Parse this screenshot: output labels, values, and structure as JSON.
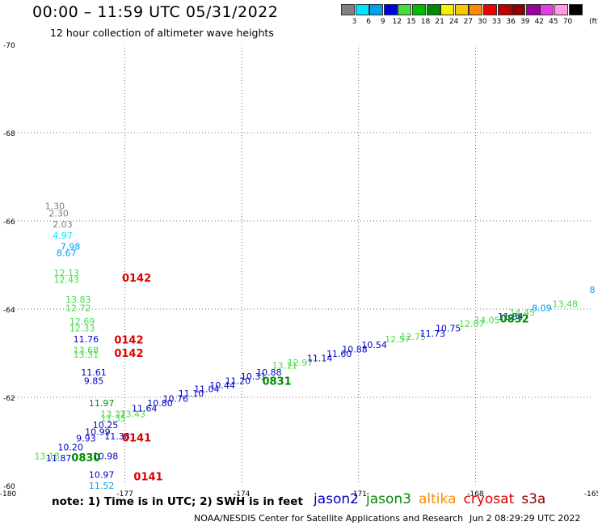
{
  "header": {
    "title": "00:00 – 11:59 UTC 05/31/2022",
    "subtitle": "12 hour collection of altimeter wave heights"
  },
  "colorbar": {
    "bins": [
      {
        "color": "#808080",
        "label": "3"
      },
      {
        "color": "#00e5ff",
        "label": "6"
      },
      {
        "color": "#00a0f0",
        "label": "9"
      },
      {
        "color": "#0000e0",
        "label": "12"
      },
      {
        "color": "#44dd44",
        "label": "15"
      },
      {
        "color": "#00bb00",
        "label": "18"
      },
      {
        "color": "#008c00",
        "label": "21"
      },
      {
        "color": "#f2f200",
        "label": "24"
      },
      {
        "color": "#f5c800",
        "label": "27"
      },
      {
        "color": "#ff8c00",
        "label": "30"
      },
      {
        "color": "#ee0000",
        "label": "33"
      },
      {
        "color": "#c00000",
        "label": "36"
      },
      {
        "color": "#8b0000",
        "label": "39"
      },
      {
        "color": "#9d009d",
        "label": "42"
      },
      {
        "color": "#e040e0",
        "label": "45"
      },
      {
        "color": "#ff99e0",
        "label": "70"
      },
      {
        "color": "#000000",
        "label": ""
      }
    ],
    "unit": "(ft)"
  },
  "footer": {
    "note": "note:  1) Time is in UTC;  2) SWH is in feet",
    "credit": "NOAA/NESDIS Center for Satellite Applications and Research",
    "timestamp": "Jun  2 08:29:29 UTC 2022"
  },
  "legend": [
    {
      "name": "jason2",
      "color": "#0000cc"
    },
    {
      "name": "jason3",
      "color": "#008c00"
    },
    {
      "name": "altika",
      "color": "#ff8c00"
    },
    {
      "name": "cryosat",
      "color": "#dd0000"
    },
    {
      "name": "s3a",
      "color": "#8b0000"
    }
  ],
  "chart_data": {
    "type": "scatter",
    "xlim": [
      -180,
      -165
    ],
    "ylim": [
      -70,
      -60
    ],
    "x_ticks": [
      "-180",
      "-177",
      "-174",
      "-171",
      "-168",
      "-165"
    ],
    "y_ticks": [
      "-60",
      "-62",
      "-64",
      "-66",
      "-68",
      "-70"
    ],
    "grid": true,
    "points": [
      {
        "x": -178.7,
        "y": -60.55,
        "label": "11.87",
        "color": "#0000cc"
      },
      {
        "x": -179.0,
        "y": -60.6,
        "label": "13.18",
        "color": "#44dd44"
      },
      {
        "x": -178.4,
        "y": -60.8,
        "label": "10.20",
        "color": "#0000cc"
      },
      {
        "x": -178.0,
        "y": -61.0,
        "label": "9.93",
        "color": "#0000cc"
      },
      {
        "x": -177.7,
        "y": -61.15,
        "label": "10.99",
        "color": "#0000cc"
      },
      {
        "x": -177.5,
        "y": -61.3,
        "label": "10.25",
        "color": "#0000cc"
      },
      {
        "x": -177.3,
        "y": -61.45,
        "label": "11.35",
        "color": "#44dd44"
      },
      {
        "x": -177.3,
        "y": -61.55,
        "label": "13.37",
        "color": "#44dd44"
      },
      {
        "x": -176.8,
        "y": -61.55,
        "label": "13.43",
        "color": "#44dd44"
      },
      {
        "x": -177.2,
        "y": -61.05,
        "label": "11.38",
        "color": "#0000cc"
      },
      {
        "x": -176.5,
        "y": -61.68,
        "label": "11.64",
        "color": "#0000cc"
      },
      {
        "x": -176.1,
        "y": -61.8,
        "label": "10.80",
        "color": "#0000cc"
      },
      {
        "x": -175.7,
        "y": -61.9,
        "label": "10.76",
        "color": "#0000cc"
      },
      {
        "x": -175.3,
        "y": -62.02,
        "label": "11.10",
        "color": "#0000cc"
      },
      {
        "x": -174.9,
        "y": -62.12,
        "label": "11.04",
        "color": "#0000cc"
      },
      {
        "x": -174.5,
        "y": -62.2,
        "label": "10.44",
        "color": "#0000cc"
      },
      {
        "x": -174.1,
        "y": -62.3,
        "label": "11.20",
        "color": "#0000cc"
      },
      {
        "x": -173.7,
        "y": -62.4,
        "label": "10.31",
        "color": "#0000cc"
      },
      {
        "x": -173.3,
        "y": -62.5,
        "label": "10.88",
        "color": "#0000cc"
      },
      {
        "x": -172.9,
        "y": -62.65,
        "label": "13.11",
        "color": "#44dd44"
      },
      {
        "x": -172.5,
        "y": -62.72,
        "label": "12.97",
        "color": "#44dd44"
      },
      {
        "x": -172.0,
        "y": -62.82,
        "label": "11.14",
        "color": "#0000cc"
      },
      {
        "x": -171.5,
        "y": -62.92,
        "label": "11.60",
        "color": "#0000cc"
      },
      {
        "x": -171.1,
        "y": -63.02,
        "label": "10.88",
        "color": "#0000cc"
      },
      {
        "x": -170.6,
        "y": -63.12,
        "label": "10.54",
        "color": "#0000cc"
      },
      {
        "x": -170.0,
        "y": -63.25,
        "label": "12.57",
        "color": "#44dd44"
      },
      {
        "x": -169.6,
        "y": -63.3,
        "label": "12.75",
        "color": "#44dd44"
      },
      {
        "x": -169.1,
        "y": -63.38,
        "label": "11.73",
        "color": "#0000cc"
      },
      {
        "x": -168.7,
        "y": -63.5,
        "label": "10.75",
        "color": "#0000cc"
      },
      {
        "x": -168.1,
        "y": -63.6,
        "label": "12.07",
        "color": "#44dd44"
      },
      {
        "x": -167.7,
        "y": -63.68,
        "label": "14.05",
        "color": "#44dd44"
      },
      {
        "x": -167.1,
        "y": -63.76,
        "label": "11.84",
        "color": "#0000cc"
      },
      {
        "x": -166.8,
        "y": -63.85,
        "label": "14.45",
        "color": "#44dd44"
      },
      {
        "x": -166.3,
        "y": -63.95,
        "label": "8.09",
        "color": "#00a0f0"
      },
      {
        "x": -165.7,
        "y": -64.05,
        "label": "13.48",
        "color": "#44dd44"
      },
      {
        "x": -177.6,
        "y": -59.93,
        "label": "11.52",
        "color": "#00a0f0"
      },
      {
        "x": -177.6,
        "y": -60.17,
        "label": "10.97",
        "color": "#0000cc"
      },
      {
        "x": -177.5,
        "y": -60.6,
        "label": "10.98",
        "color": "#0000cc"
      },
      {
        "x": -177.6,
        "y": -61.8,
        "label": "11.97",
        "color": "#008c00"
      },
      {
        "x": -177.8,
        "y": -62.3,
        "label": "9.85",
        "color": "#0000cc"
      },
      {
        "x": -177.8,
        "y": -62.5,
        "label": "11.61",
        "color": "#0000cc"
      },
      {
        "x": -178.0,
        "y": -62.9,
        "label": "13.31",
        "color": "#44dd44"
      },
      {
        "x": -178.0,
        "y": -63.0,
        "label": "13.68",
        "color": "#44dd44"
      },
      {
        "x": -178.0,
        "y": -63.25,
        "label": "11.76",
        "color": "#0000cc"
      },
      {
        "x": -178.1,
        "y": -63.5,
        "label": "12.33",
        "color": "#44dd44"
      },
      {
        "x": -178.1,
        "y": -63.65,
        "label": "12.69",
        "color": "#44dd44"
      },
      {
        "x": -178.2,
        "y": -63.95,
        "label": "12.72",
        "color": "#44dd44"
      },
      {
        "x": -178.2,
        "y": -64.15,
        "label": "13.83",
        "color": "#44dd44"
      },
      {
        "x": -178.5,
        "y": -64.6,
        "label": "12.43",
        "color": "#44dd44"
      },
      {
        "x": -178.5,
        "y": -64.75,
        "label": "12.13",
        "color": "#44dd44"
      },
      {
        "x": -178.5,
        "y": -65.2,
        "label": "8.67",
        "color": "#00a0f0"
      },
      {
        "x": -178.4,
        "y": -65.35,
        "label": "7.98",
        "color": "#00a0f0"
      },
      {
        "x": -178.6,
        "y": -65.6,
        "label": "4.97",
        "color": "#00e5ff"
      },
      {
        "x": -178.6,
        "y": -65.85,
        "label": "2.03",
        "color": "#808080"
      },
      {
        "x": -178.7,
        "y": -66.1,
        "label": "2.30",
        "color": "#808080"
      },
      {
        "x": -178.8,
        "y": -66.27,
        "label": "1.30",
        "color": "#808080"
      },
      {
        "x": -165.0,
        "y": -64.37,
        "label": "8",
        "color": "#00a0f0"
      }
    ],
    "time_labels": [
      {
        "x": -178.0,
        "y": -60.55,
        "label": "0830",
        "color": "#008c00"
      },
      {
        "x": -176.4,
        "y": -60.12,
        "label": "0141",
        "color": "#dd0000"
      },
      {
        "x": -176.7,
        "y": -61.0,
        "label": "0141",
        "color": "#dd0000"
      },
      {
        "x": -173.1,
        "y": -62.28,
        "label": "0831",
        "color": "#008c00"
      },
      {
        "x": -176.9,
        "y": -62.92,
        "label": "0142",
        "color": "#dd0000"
      },
      {
        "x": -176.9,
        "y": -63.22,
        "label": "0142",
        "color": "#dd0000"
      },
      {
        "x": -176.7,
        "y": -64.62,
        "label": "0142",
        "color": "#dd0000"
      },
      {
        "x": -167.0,
        "y": -63.7,
        "label": "0832",
        "color": "#008c00"
      }
    ]
  }
}
